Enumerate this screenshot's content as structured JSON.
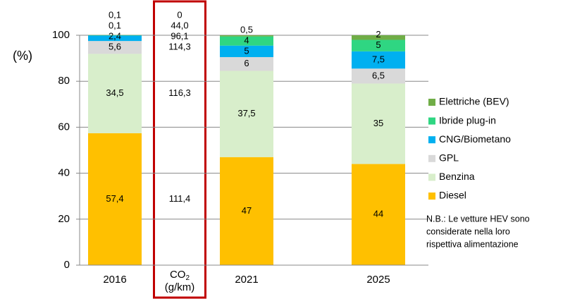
{
  "chart_data": {
    "type": "stacked_bar",
    "y_label": "(%)",
    "categories": [
      "2016",
      "2021",
      "2025"
    ],
    "ylim": [
      0,
      100
    ],
    "yticks": [
      0,
      20,
      40,
      60,
      80,
      100
    ],
    "grid": true,
    "series": [
      {
        "name": "Diesel",
        "color": "#ffc000",
        "values": [
          57.4,
          47,
          44
        ],
        "value_labels": [
          "57,4",
          "47",
          "44"
        ]
      },
      {
        "name": "Benzina",
        "color": "#d8eecb",
        "values": [
          34.5,
          37.5,
          35
        ],
        "value_labels": [
          "34,5",
          "37,5",
          "35"
        ]
      },
      {
        "name": "GPL",
        "color": "#d9d9d9",
        "values": [
          5.6,
          6,
          6.5
        ],
        "value_labels": [
          "5,6",
          "6",
          "6,5"
        ]
      },
      {
        "name": "CNG/Biometano",
        "color": "#00b0f0",
        "values": [
          2.4,
          5,
          7.5
        ],
        "value_labels": [
          "2,4",
          "5",
          "7,5"
        ]
      },
      {
        "name": "Ibride plug-in",
        "color": "#2fd682",
        "values": [
          0.1,
          4,
          5
        ],
        "value_labels": [
          "0,1",
          "4",
          "5"
        ]
      },
      {
        "name": "Elettriche (BEV)",
        "color": "#70ad47",
        "values": [
          0.1,
          0.5,
          2
        ],
        "value_labels": [
          "0,1",
          "0,5",
          "2"
        ]
      }
    ],
    "co2_column": {
      "label_main": "CO",
      "label_sub": "2",
      "unit": "(g/km)",
      "values": [
        111.4,
        116.3,
        114.3,
        96.1,
        44.0,
        0
      ],
      "value_labels": [
        "111,4",
        "116,3",
        "114,3",
        "96,1",
        "44,0",
        "0"
      ]
    },
    "note": [
      "N.B.: Le vetture HEV sono",
      "considerate nella loro",
      "rispettiva alimentazione"
    ]
  }
}
